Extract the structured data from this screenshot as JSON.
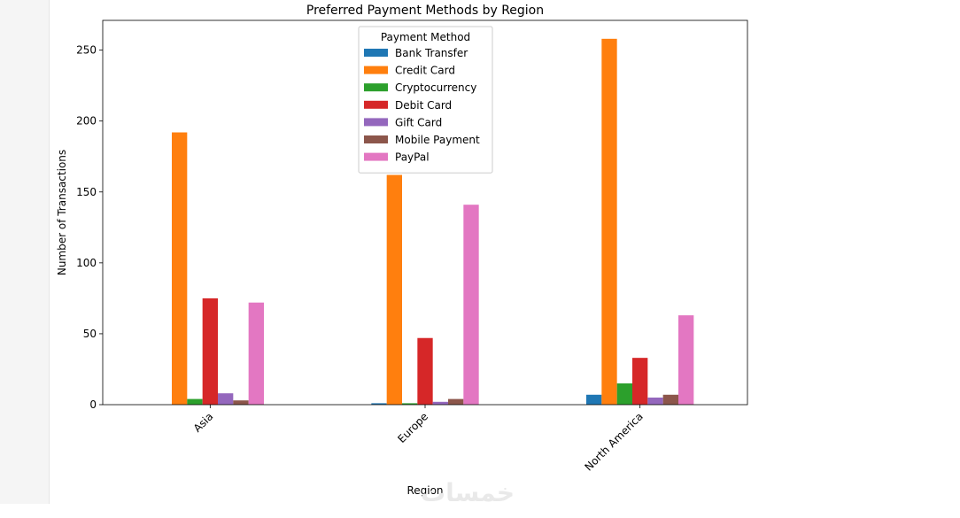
{
  "chart_data": {
    "type": "bar",
    "title": "Preferred Payment Methods by Region",
    "xlabel": "Region",
    "ylabel": "Number of Transactions",
    "categories": [
      "Asia",
      "Europe",
      "North America"
    ],
    "ylim": [
      0,
      271
    ],
    "yticks": [
      0,
      50,
      100,
      150,
      200,
      250
    ],
    "legend_title": "Payment Method",
    "legend_position": "upper-center",
    "grid": false,
    "series": [
      {
        "name": "Bank Transfer",
        "color": "#1f77b4",
        "values": [
          0,
          1,
          7
        ]
      },
      {
        "name": "Credit Card",
        "color": "#ff7f0e",
        "values": [
          192,
          162,
          258
        ]
      },
      {
        "name": "Cryptocurrency",
        "color": "#2ca02c",
        "values": [
          4,
          1,
          15
        ]
      },
      {
        "name": "Debit Card",
        "color": "#d62728",
        "values": [
          75,
          47,
          33
        ]
      },
      {
        "name": "Gift Card",
        "color": "#9467bd",
        "values": [
          8,
          2,
          5
        ]
      },
      {
        "name": "Mobile Payment",
        "color": "#8c564b",
        "values": [
          3,
          4,
          7
        ]
      },
      {
        "name": "PayPal",
        "color": "#e377c2",
        "values": [
          72,
          141,
          63
        ]
      }
    ]
  },
  "watermark_text": "خمسات"
}
